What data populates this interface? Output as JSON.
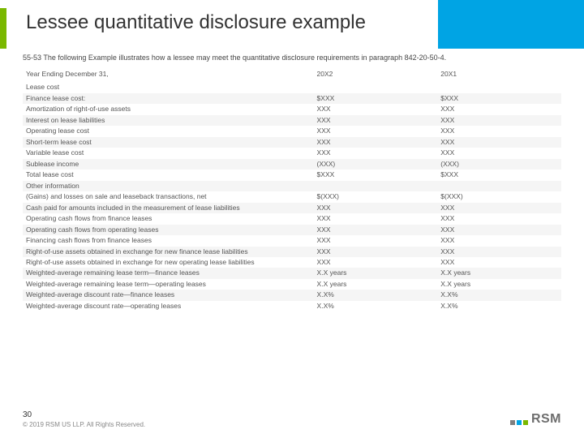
{
  "title": "Lessee quantitative disclosure example",
  "intro": "55-53 The following Example illustrates how a lessee may meet the quantitative disclosure requirements in paragraph 842-20-50-4.",
  "header": {
    "label": "Year Ending December 31,",
    "c1": "20X2",
    "c2": "20X1"
  },
  "rows": [
    {
      "label": "Lease cost",
      "c1": "",
      "c2": "",
      "alt": false
    },
    {
      "label": "Finance lease cost:",
      "c1": "$XXX",
      "c2": "$XXX",
      "alt": true
    },
    {
      "label": "Amortization of right-of-use assets",
      "c1": "XXX",
      "c2": "XXX",
      "alt": false
    },
    {
      "label": "Interest on lease liabilities",
      "c1": "XXX",
      "c2": "XXX",
      "alt": true
    },
    {
      "label": "Operating lease cost",
      "c1": "XXX",
      "c2": "XXX",
      "alt": false
    },
    {
      "label": "Short-term lease cost",
      "c1": "XXX",
      "c2": "XXX",
      "alt": true
    },
    {
      "label": "Variable lease cost",
      "c1": "XXX",
      "c2": "XXX",
      "alt": false
    },
    {
      "label": "Sublease income",
      "c1": "(XXX)",
      "c2": "(XXX)",
      "alt": true
    },
    {
      "label": "Total lease cost",
      "c1": "$XXX",
      "c2": "$XXX",
      "alt": false
    },
    {
      "label": "Other information",
      "c1": "",
      "c2": "",
      "alt": true
    },
    {
      "label": "(Gains) and losses on sale and leaseback transactions, net",
      "c1": "$(XXX)",
      "c2": "$(XXX)",
      "alt": false
    },
    {
      "label": "Cash paid for amounts included in the measurement of lease liabilities",
      "c1": "XXX",
      "c2": "XXX",
      "alt": true
    },
    {
      "label": "Operating cash flows from finance leases",
      "c1": "XXX",
      "c2": "XXX",
      "alt": false
    },
    {
      "label": "Operating cash flows from operating leases",
      "c1": "XXX",
      "c2": "XXX",
      "alt": true
    },
    {
      "label": "Financing cash flows from finance leases",
      "c1": "XXX",
      "c2": "XXX",
      "alt": false
    },
    {
      "label": "Right-of-use assets obtained in exchange for new finance lease liabilities",
      "c1": "XXX",
      "c2": "XXX",
      "alt": true
    },
    {
      "label": "Right-of-use assets obtained in exchange for new operating lease liabilities",
      "c1": "XXX",
      "c2": "XXX",
      "alt": false
    },
    {
      "label": "Weighted-average remaining lease term—finance leases",
      "c1": "X.X years",
      "c2": "X.X years",
      "alt": true
    },
    {
      "label": "Weighted-average remaining lease term—operating leases",
      "c1": "X.X years",
      "c2": "X.X years",
      "alt": false
    },
    {
      "label": "Weighted-average discount rate—finance leases",
      "c1": "X.X%",
      "c2": "X.X%",
      "alt": true
    },
    {
      "label": "Weighted-average discount rate—operating leases",
      "c1": "X.X%",
      "c2": "X.X%",
      "alt": false
    }
  ],
  "page": "30",
  "copyright": "© 2019 RSM US LLP. All Rights Reserved.",
  "logo": "RSM",
  "colors": {
    "accent_green": "#7ab800",
    "accent_blue": "#00a4e4",
    "alt_row": "#f5f5f5"
  }
}
